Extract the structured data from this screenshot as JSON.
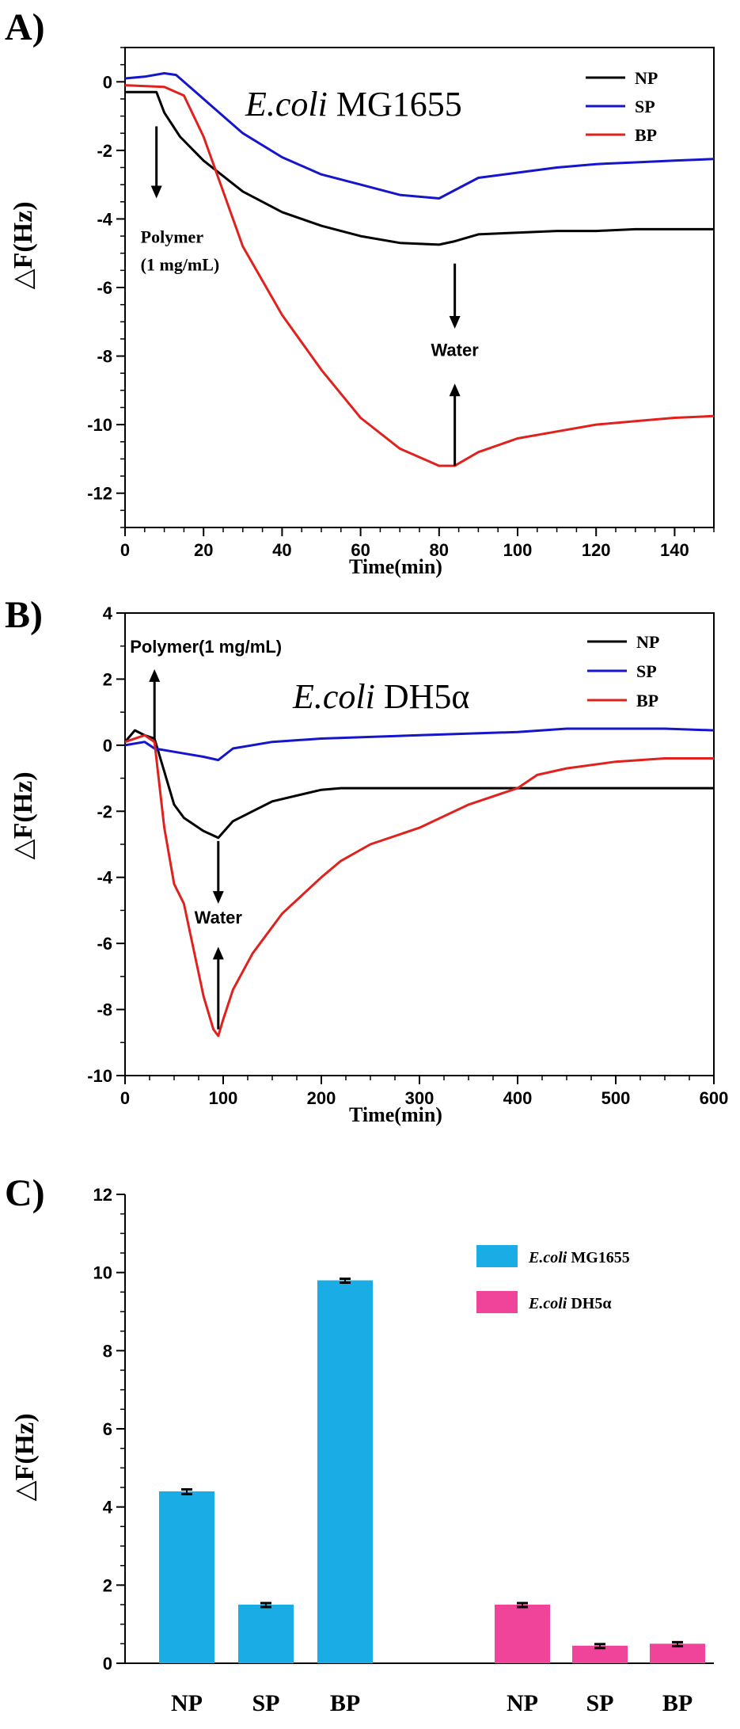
{
  "chart_data": [
    {
      "panel": "A)",
      "type": "line",
      "strain_italic": "E.coli",
      "strain_roman": " MG1655",
      "xlabel": "Time(min)",
      "ylabel": "△F(Hz)",
      "xlim": [
        0,
        150
      ],
      "ylim": [
        -13,
        1
      ],
      "xticks": [
        0,
        20,
        40,
        60,
        80,
        100,
        120,
        140
      ],
      "yticks": [
        0,
        -2,
        -4,
        -6,
        -8,
        -10,
        -12
      ],
      "legend_position": "top-right",
      "annotations": [
        {
          "text": "Polymer",
          "x": 8,
          "y": -4.7
        },
        {
          "text": "(1 mg/mL)",
          "x": 8,
          "y": -5.5
        },
        {
          "text": "Water",
          "x": 84,
          "y": -8.0
        }
      ],
      "arrows": [
        {
          "x": 8,
          "from": -1.3,
          "to": -3.4
        },
        {
          "x": 84,
          "from": -5.3,
          "to": -7.2
        },
        {
          "x": 84,
          "from": -11.2,
          "to": -8.8
        }
      ],
      "series": [
        {
          "name": "NP",
          "color": "#000000",
          "x": [
            0,
            8,
            10,
            14,
            20,
            30,
            40,
            50,
            60,
            70,
            80,
            84,
            90,
            100,
            110,
            120,
            130,
            140,
            150
          ],
          "y": [
            -0.3,
            -0.3,
            -0.9,
            -1.6,
            -2.3,
            -3.2,
            -3.8,
            -4.2,
            -4.5,
            -4.7,
            -4.75,
            -4.65,
            -4.45,
            -4.4,
            -4.35,
            -4.35,
            -4.3,
            -4.3,
            -4.3
          ]
        },
        {
          "name": "SP",
          "color": "#1515cc",
          "x": [
            0,
            5,
            10,
            13,
            18,
            25,
            30,
            40,
            50,
            60,
            70,
            80,
            85,
            90,
            100,
            110,
            120,
            130,
            140,
            150
          ],
          "y": [
            0.1,
            0.15,
            0.25,
            0.2,
            -0.3,
            -1.0,
            -1.5,
            -2.2,
            -2.7,
            -3.0,
            -3.3,
            -3.4,
            -3.1,
            -2.8,
            -2.65,
            -2.5,
            -2.4,
            -2.35,
            -2.3,
            -2.25
          ]
        },
        {
          "name": "BP",
          "color": "#e0211d",
          "x": [
            0,
            10,
            15,
            20,
            25,
            30,
            40,
            50,
            60,
            70,
            80,
            84,
            90,
            100,
            110,
            120,
            130,
            140,
            150
          ],
          "y": [
            -0.1,
            -0.15,
            -0.4,
            -1.6,
            -3.2,
            -4.8,
            -6.8,
            -8.4,
            -9.8,
            -10.7,
            -11.2,
            -11.2,
            -10.8,
            -10.4,
            -10.2,
            -10.0,
            -9.9,
            -9.8,
            -9.75
          ]
        }
      ]
    },
    {
      "panel": "B)",
      "type": "line",
      "strain_italic": "E.coli",
      "strain_roman": " DH5α",
      "xlabel": "Time(min)",
      "ylabel": "△F(Hz)",
      "xlim": [
        0,
        600
      ],
      "ylim": [
        -10,
        4
      ],
      "xticks": [
        0,
        100,
        200,
        300,
        400,
        500,
        600
      ],
      "yticks": [
        4,
        2,
        0,
        -2,
        -4,
        -6,
        -8,
        -10
      ],
      "legend_position": "top-right",
      "annotations": [
        {
          "text": "Polymer(1 mg/mL)",
          "x": 5,
          "y": 2.8
        },
        {
          "text": "Water",
          "x": 95,
          "y": -5.4
        }
      ],
      "arrows": [
        {
          "x": 30,
          "from": 0.2,
          "to": 2.3
        },
        {
          "x": 95,
          "from": -2.9,
          "to": -4.8
        },
        {
          "x": 95,
          "from": -8.6,
          "to": -6.1
        }
      ],
      "series": [
        {
          "name": "NP",
          "color": "#000000",
          "x": [
            0,
            10,
            20,
            30,
            40,
            50,
            60,
            80,
            95,
            110,
            150,
            200,
            220,
            300,
            400,
            500,
            600
          ],
          "y": [
            0.1,
            0.45,
            0.3,
            0.2,
            -0.8,
            -1.8,
            -2.2,
            -2.6,
            -2.8,
            -2.3,
            -1.7,
            -1.35,
            -1.3,
            -1.3,
            -1.3,
            -1.3,
            -1.3
          ]
        },
        {
          "name": "SP",
          "color": "#1515cc",
          "x": [
            0,
            20,
            30,
            50,
            80,
            95,
            110,
            150,
            200,
            300,
            400,
            450,
            500,
            550,
            600
          ],
          "y": [
            0.0,
            0.1,
            -0.1,
            -0.2,
            -0.35,
            -0.45,
            -0.1,
            0.1,
            0.2,
            0.3,
            0.4,
            0.5,
            0.5,
            0.5,
            0.45
          ]
        },
        {
          "name": "BP",
          "color": "#e0211d",
          "x": [
            0,
            20,
            30,
            40,
            50,
            60,
            70,
            80,
            90,
            95,
            100,
            110,
            130,
            160,
            200,
            220,
            250,
            300,
            350,
            400,
            420,
            450,
            500,
            550,
            600
          ],
          "y": [
            0.1,
            0.3,
            0.1,
            -2.5,
            -4.2,
            -4.8,
            -6.2,
            -7.6,
            -8.6,
            -8.8,
            -8.3,
            -7.4,
            -6.3,
            -5.1,
            -4.0,
            -3.5,
            -3.0,
            -2.5,
            -1.8,
            -1.3,
            -0.9,
            -0.7,
            -0.5,
            -0.4,
            -0.4
          ]
        }
      ]
    },
    {
      "panel": "C)",
      "type": "bar",
      "ylabel": "△F(Hz)",
      "ylim": [
        0,
        12
      ],
      "yticks": [
        0,
        2,
        4,
        6,
        8,
        10,
        12
      ],
      "legend_position": "top-right",
      "groups": [
        {
          "legend_italic": "E.coli",
          "legend_roman": " MG1655",
          "color": "#1aace4",
          "categories": [
            "NP",
            "SP",
            "BP"
          ],
          "values": [
            4.4,
            1.5,
            9.8
          ],
          "errors": [
            0.05,
            0.04,
            0.04
          ]
        },
        {
          "legend_italic": "E.coli",
          "legend_roman": " DH5α",
          "color": "#f0449a",
          "categories": [
            "NP",
            "SP",
            "BP"
          ],
          "values": [
            1.5,
            0.45,
            0.5
          ],
          "errors": [
            0.04,
            0.04,
            0.04
          ]
        }
      ]
    }
  ]
}
